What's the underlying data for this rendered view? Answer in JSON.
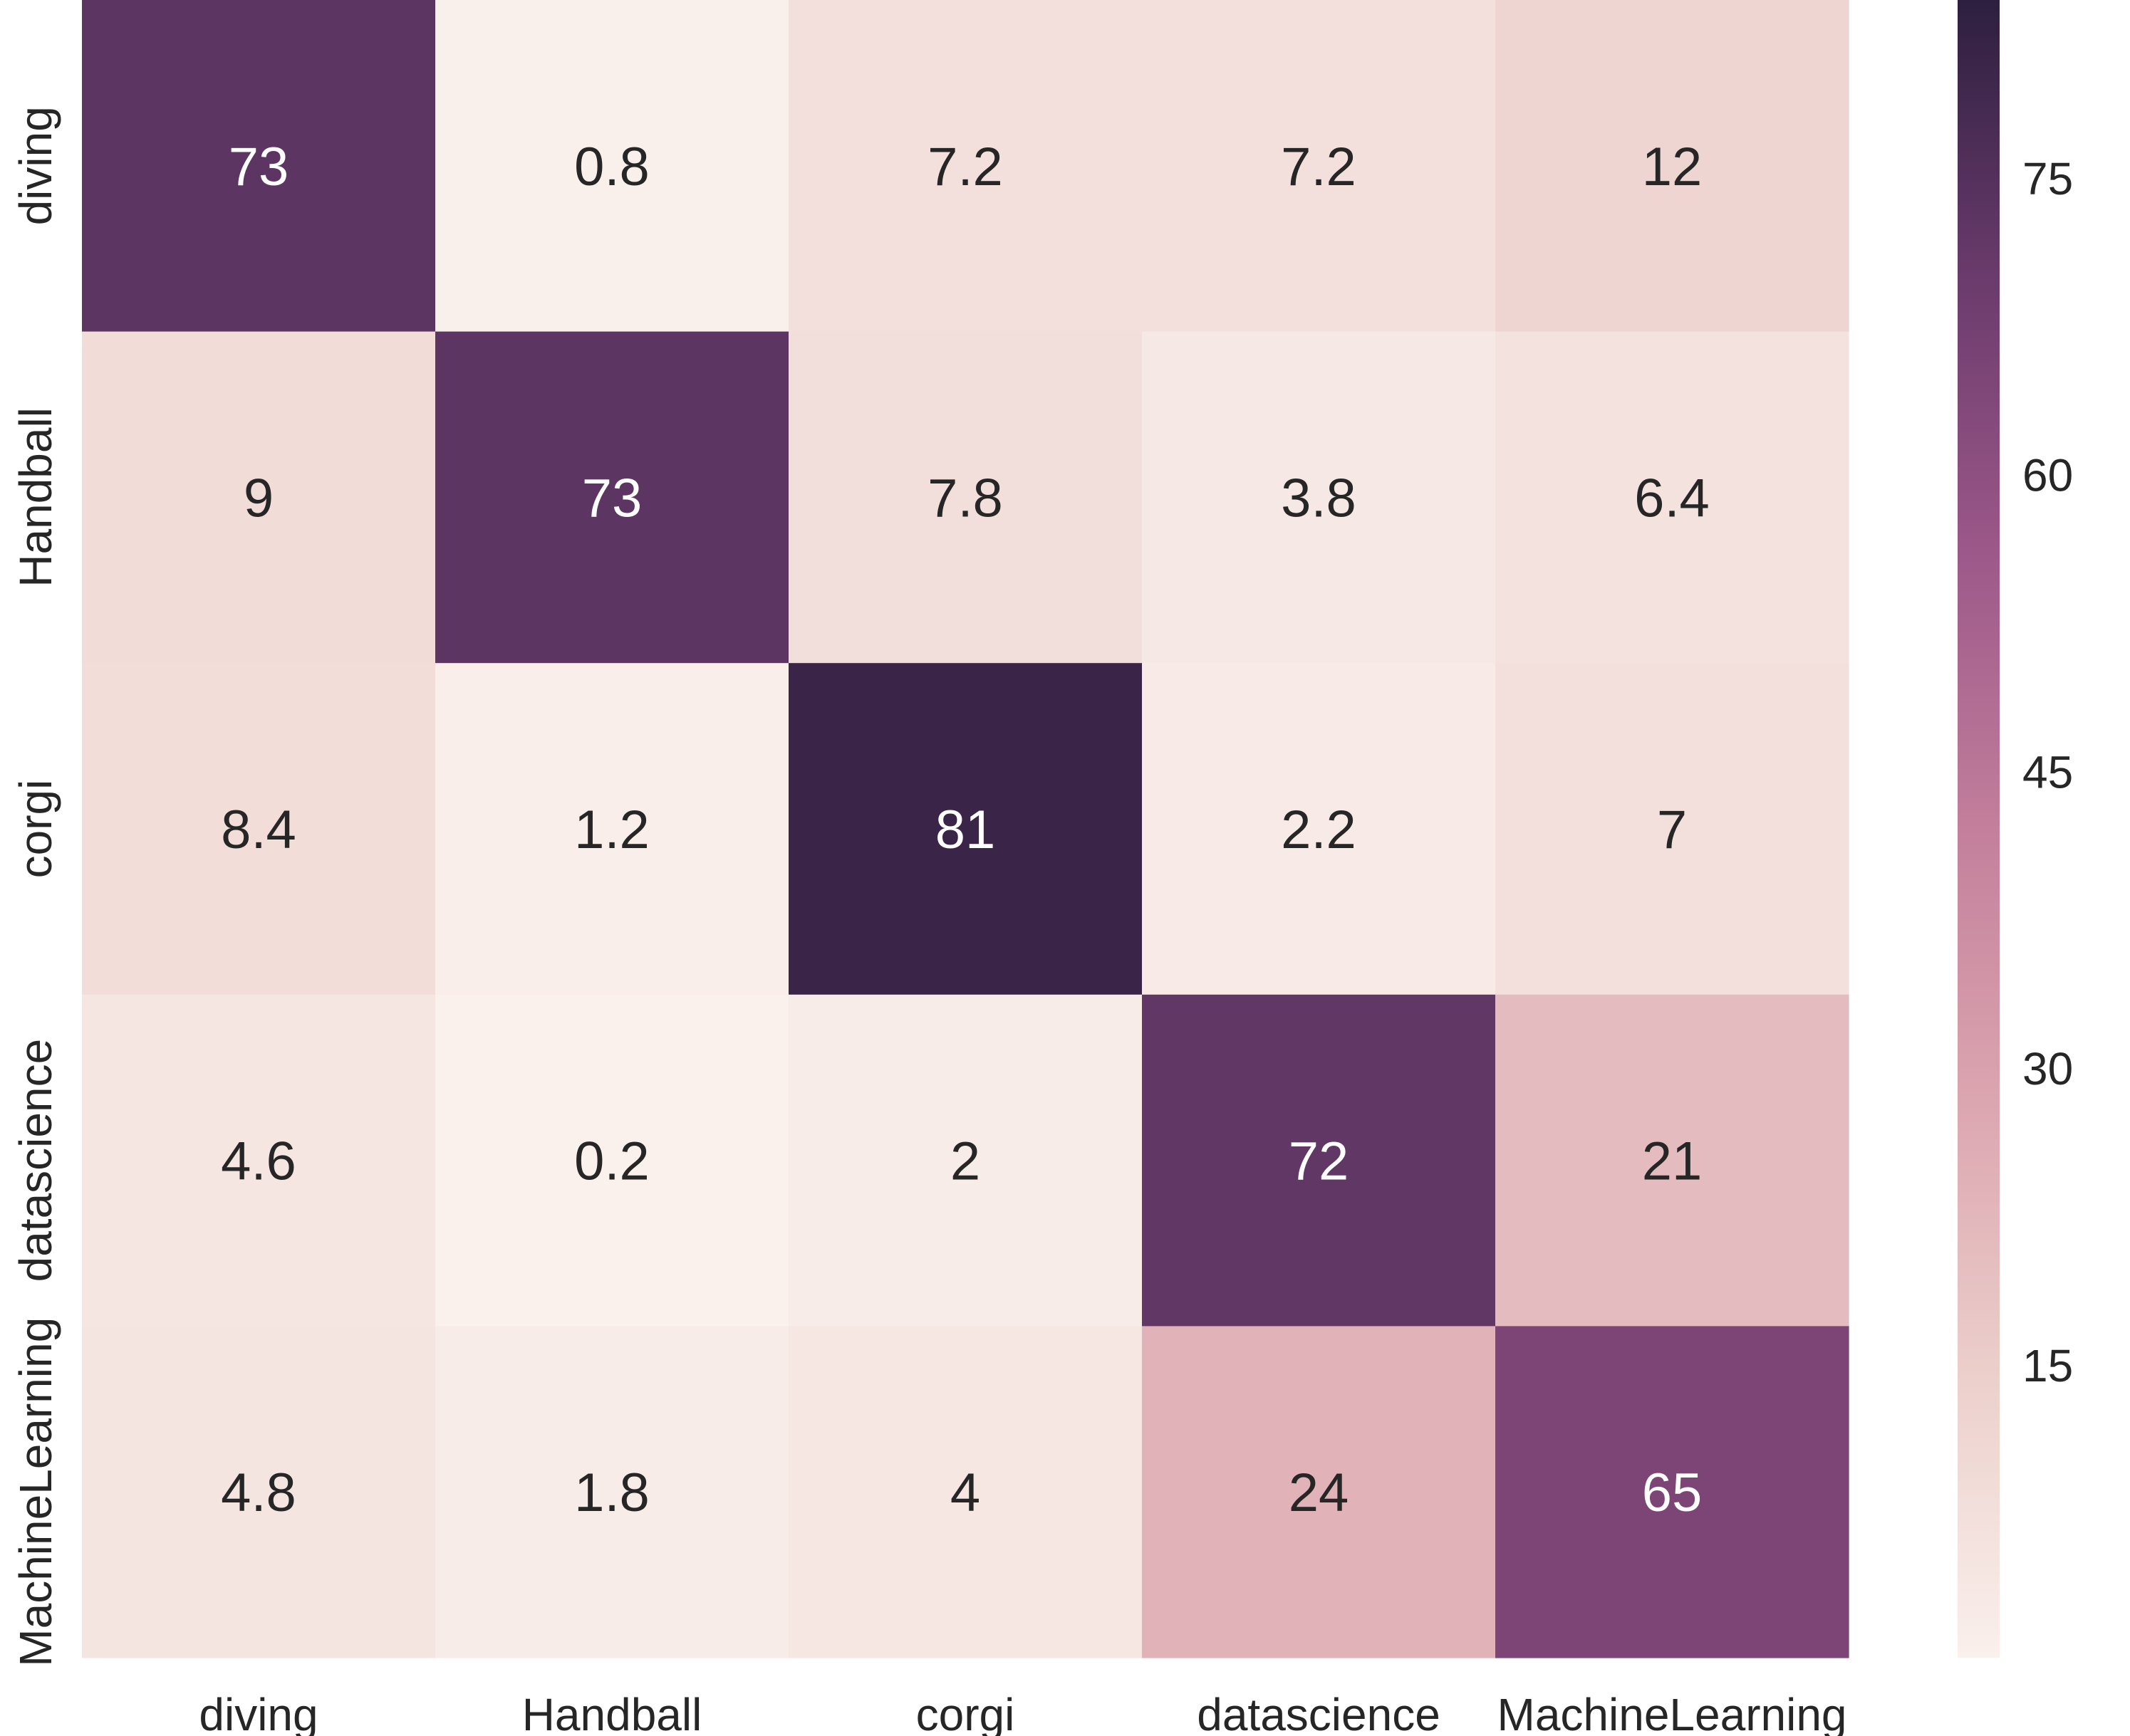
{
  "chart_data": {
    "type": "heatmap",
    "title": "",
    "xlabel": "",
    "ylabel": "",
    "x_categories": [
      "diving",
      "Handball",
      "corgi",
      "datascience",
      "MachineLearning"
    ],
    "y_categories": [
      "diving",
      "Handball",
      "corgi",
      "datascience",
      "MachineLearning"
    ],
    "values": [
      [
        73,
        0.8,
        7.2,
        7.2,
        12
      ],
      [
        9,
        73,
        7.8,
        3.8,
        6.4
      ],
      [
        8.4,
        1.2,
        81,
        2.2,
        7
      ],
      [
        4.6,
        0.2,
        2,
        72,
        21
      ],
      [
        4.8,
        1.8,
        4,
        24,
        65
      ]
    ],
    "annotations": [
      [
        "73",
        "0.8",
        "7.2",
        "7.2",
        "12"
      ],
      [
        "9",
        "73",
        "7.8",
        "3.8",
        "6.4"
      ],
      [
        "8.4",
        "1.2",
        "81",
        "2.2",
        "7"
      ],
      [
        "4.6",
        "0.2",
        "2",
        "72",
        "21"
      ],
      [
        "4.8",
        "1.8",
        "4",
        "24",
        "65"
      ]
    ],
    "colorbar": {
      "range": [
        0.2,
        84
      ],
      "ticks": [
        15,
        30,
        45,
        60,
        75
      ],
      "tick_labels": [
        "15",
        "30",
        "45",
        "60",
        "75"
      ]
    },
    "colormap": [
      "#faf0ec",
      "#ecd0cc",
      "#dca6b0",
      "#c37f9b",
      "#9c5889",
      "#6a3b6c",
      "#2d1f3f"
    ]
  }
}
